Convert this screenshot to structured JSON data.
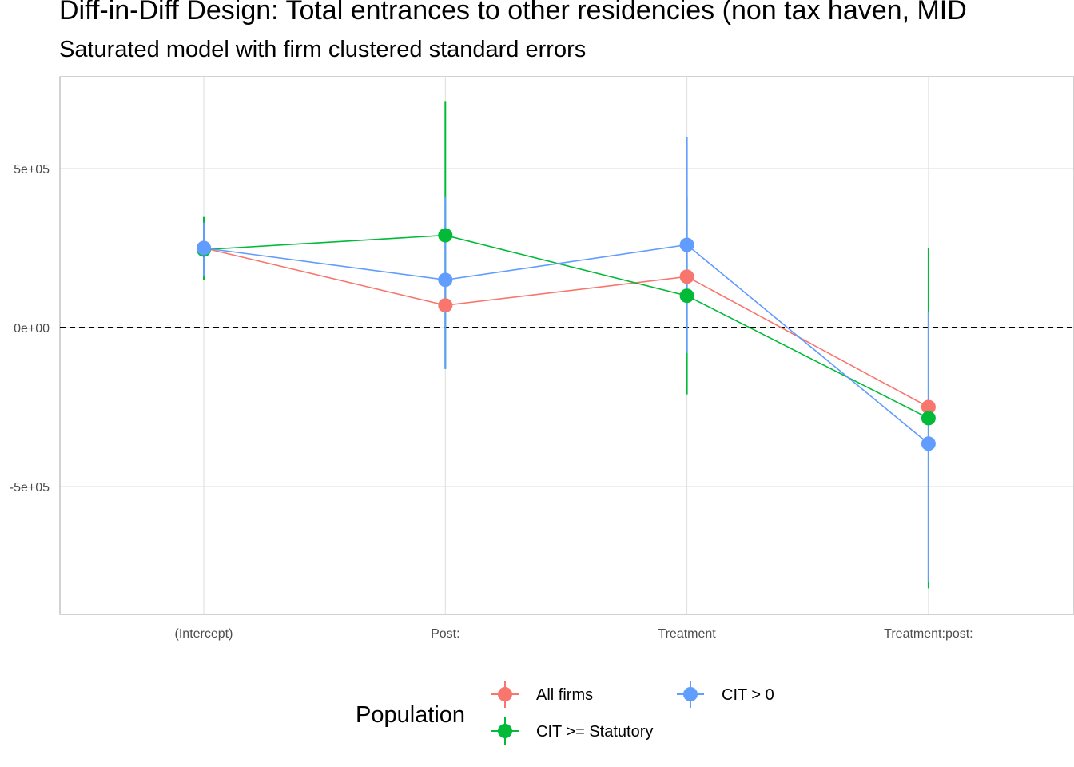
{
  "chart_data": {
    "type": "scatter",
    "title": "Diff-in-Diff Design: Total entrances to other residencies (non tax haven, MID",
    "subtitle": "Saturated model with firm clustered standard errors",
    "categories": [
      "(Intercept)",
      "Post:",
      "Treatment",
      "Treatment:post:"
    ],
    "ylim": [
      -900000,
      800000
    ],
    "y_ticks": [
      {
        "value": 500000,
        "label": "5e+05"
      },
      {
        "value": 0,
        "label": "0e+00"
      },
      {
        "value": -500000,
        "label": "-5e+05"
      }
    ],
    "y_minor": [
      750000,
      250000,
      -250000,
      -750000
    ],
    "reference_line": 0,
    "grid": true,
    "legend": {
      "title": "Population",
      "position": "bottom"
    },
    "series": [
      {
        "name": "All firms",
        "color": "#F8766D",
        "values": [
          250000,
          70000,
          160000,
          -250000
        ],
        "lower": [
          null,
          null,
          null,
          null
        ],
        "upper": [
          null,
          null,
          null,
          null
        ]
      },
      {
        "name": "CIT >= Statutory",
        "color": "#00BA38",
        "values": [
          245000,
          290000,
          100000,
          -285000
        ],
        "lower": [
          150000,
          -130000,
          -210000,
          -820000
        ],
        "upper": [
          350000,
          710000,
          410000,
          250000
        ]
      },
      {
        "name": "CIT > 0",
        "color": "#619CFF",
        "values": [
          250000,
          150000,
          260000,
          -365000
        ],
        "lower": [
          160000,
          -130000,
          -80000,
          -800000
        ],
        "upper": [
          330000,
          410000,
          600000,
          50000
        ]
      }
    ]
  }
}
